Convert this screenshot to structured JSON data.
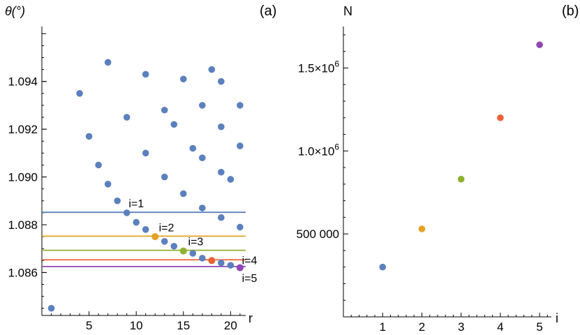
{
  "chart_data": [
    {
      "panel_label": "(a)",
      "type": "scatter",
      "xlabel": "r",
      "ylabel": "θ(°)",
      "xlim": [
        0,
        21.6
      ],
      "ylim": [
        1.0842,
        1.0963
      ],
      "x_ticks": [
        5,
        10,
        15,
        20
      ],
      "x_tick_labels": [
        "5",
        "10",
        "15",
        "20"
      ],
      "y_ticks": [
        1.086,
        1.088,
        1.09,
        1.092,
        1.094
      ],
      "y_tick_labels": [
        "1.086",
        "1.088",
        "1.090",
        "1.092",
        "1.094"
      ],
      "grid": false,
      "point_color": "#5B80BE",
      "series": [
        {
          "points": [
            [
              1,
              1.0845
            ],
            [
              4,
              1.0935
            ],
            [
              5,
              1.0917
            ],
            [
              6,
              1.0905
            ],
            [
              7,
              1.0948
            ],
            [
              7,
              1.0897
            ],
            [
              8,
              1.089
            ],
            [
              9,
              1.0925
            ],
            [
              9,
              1.0885
            ],
            [
              10,
              1.0881
            ],
            [
              11,
              1.0943
            ],
            [
              11,
              1.091
            ],
            [
              11,
              1.0878
            ],
            [
              12,
              1.0875
            ],
            [
              13,
              1.0928
            ],
            [
              13,
              1.09
            ],
            [
              13,
              1.0873
            ],
            [
              14,
              1.0922
            ],
            [
              14,
              1.0871
            ],
            [
              15,
              1.0941
            ],
            [
              15,
              1.0893
            ],
            [
              15,
              1.0869
            ],
            [
              16,
              1.0912
            ],
            [
              16,
              1.0868
            ],
            [
              17,
              1.093
            ],
            [
              17,
              1.0908
            ],
            [
              17,
              1.0887
            ],
            [
              17,
              1.0866
            ],
            [
              18,
              1.0945
            ],
            [
              18,
              1.0865
            ],
            [
              19,
              1.094
            ],
            [
              19,
              1.0921
            ],
            [
              19,
              1.0902
            ],
            [
              19,
              1.0883
            ],
            [
              19,
              1.0864
            ],
            [
              20,
              1.0899
            ],
            [
              20,
              1.0863
            ],
            [
              21,
              1.093
            ],
            [
              21,
              1.0913
            ],
            [
              21,
              1.0879
            ],
            [
              21,
              1.0862
            ]
          ]
        }
      ],
      "highlighted_points": [
        {
          "x": 12,
          "y": 1.0875,
          "color": "#E5A126"
        },
        {
          "x": 15,
          "y": 1.0869,
          "color": "#8FB131"
        },
        {
          "x": 18,
          "y": 1.0865,
          "color": "#EB6235"
        },
        {
          "x": 21,
          "y": 1.0862,
          "color": "#8F47B3"
        }
      ],
      "reference_lines": [
        {
          "label": "i=1",
          "y": 1.08852,
          "color": "#5B80BE"
        },
        {
          "label": "i=2",
          "y": 1.08752,
          "color": "#E5A126"
        },
        {
          "label": "i=3",
          "y": 1.08693,
          "color": "#8FB131"
        },
        {
          "label": "i=4",
          "y": 1.08653,
          "color": "#EB6235"
        },
        {
          "label": "i=5",
          "y": 1.08625,
          "color": "#8F47B3"
        }
      ]
    },
    {
      "panel_label": "(b)",
      "type": "scatter",
      "xlabel": "i",
      "ylabel": "N",
      "xlim": [
        0,
        5.3
      ],
      "ylim": [
        0,
        1750000
      ],
      "x_ticks": [
        1,
        2,
        3,
        4,
        5
      ],
      "x_tick_labels": [
        "1",
        "2",
        "3",
        "4",
        "5"
      ],
      "y_ticks": [
        500000,
        1000000,
        1500000
      ],
      "y_tick_labels": [
        "500 000",
        "1.0×10",
        "1.5×10"
      ],
      "y_tick_exponents": [
        "",
        "6",
        "6"
      ],
      "grid": false,
      "points": [
        {
          "x": 1,
          "y": 300000,
          "color": "#5B80BE"
        },
        {
          "x": 2,
          "y": 530000,
          "color": "#E5A126"
        },
        {
          "x": 3,
          "y": 830000,
          "color": "#8FB131"
        },
        {
          "x": 4,
          "y": 1200000,
          "color": "#EB6235"
        },
        {
          "x": 5,
          "y": 1640000,
          "color": "#8F47B3"
        }
      ]
    }
  ]
}
